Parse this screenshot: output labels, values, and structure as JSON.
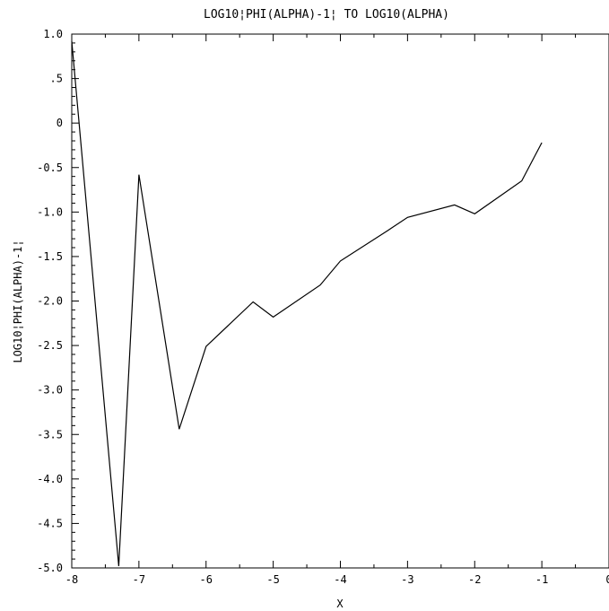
{
  "chart_data": {
    "type": "line",
    "title": "LOG10¦PHI(ALPHA)-1¦ TO LOG10(ALPHA)",
    "xlabel": "X",
    "ylabel": "LOG10¦PHI(ALPHA)-1¦",
    "xlim": [
      -8,
      0
    ],
    "ylim": [
      -5.0,
      1.0
    ],
    "xticks": [
      -8,
      -7,
      -6,
      -5,
      -4,
      -3,
      -2,
      -1,
      0
    ],
    "xtick_labels": [
      "-8",
      "-7",
      "-6",
      "-5",
      "-4",
      "-3",
      "-2",
      "-1",
      "0"
    ],
    "yticks": [
      1.0,
      0.5,
      0,
      -0.5,
      -1.0,
      -1.5,
      -2.0,
      -2.5,
      -3.0,
      -3.5,
      -4.0,
      -4.5,
      -5.0
    ],
    "ytick_labels": [
      "1.0",
      ".5",
      "0",
      "-0.5",
      "-1.0",
      "-1.5",
      "-2.0",
      "-2.5",
      "-3.0",
      "-3.5",
      "-4.0",
      "-4.5",
      "-5.0"
    ],
    "grid": false,
    "series": [
      {
        "x": [
          -8,
          -7.3,
          -7,
          -6.4,
          -6,
          -5.3,
          -5,
          -4.3,
          -4,
          -3.3,
          -3,
          -2.3,
          -2,
          -1.3,
          -1
        ],
        "y": [
          0.92,
          -4.98,
          -0.58,
          -3.44,
          -2.51,
          -2.01,
          -2.18,
          -1.82,
          -1.55,
          -1.21,
          -1.06,
          -0.92,
          -1.02,
          -0.65,
          -0.22
        ]
      }
    ]
  }
}
